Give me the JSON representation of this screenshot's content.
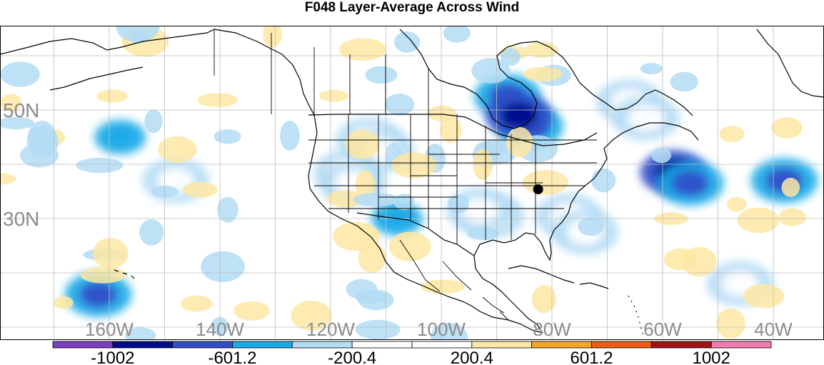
{
  "title": "F048 Layer-Average Across Wind",
  "map": {
    "region": "North America and adjacent Pacific / Atlantic",
    "lat_labels": [
      {
        "text": "50N",
        "lat": 50
      },
      {
        "text": "30N",
        "lat": 30
      }
    ],
    "lon_labels": [
      {
        "text": "160W",
        "lon": -160
      },
      {
        "text": "140W",
        "lon": -140
      },
      {
        "text": "120W",
        "lon": -120
      },
      {
        "text": "100W",
        "lon": -100
      },
      {
        "text": "80W",
        "lon": -80
      },
      {
        "text": "60W",
        "lon": -60
      },
      {
        "text": "40W",
        "lon": -40
      }
    ],
    "markers": [
      {
        "name": "point-marker",
        "lat": 35.4,
        "lon": -82.5
      }
    ],
    "field_blobs": [
      {
        "lon": -113,
        "lat": 44.5,
        "level": 5
      },
      {
        "lon": -111,
        "lat": 42.5,
        "level": 6
      },
      {
        "lon": -117,
        "lat": 38.5,
        "level": 6
      },
      {
        "lon": -116,
        "lat": 36.5,
        "level": 5
      },
      {
        "lon": -91,
        "lat": 30.5,
        "level": 6
      },
      {
        "lon": -93,
        "lat": 31.5,
        "level": 5
      },
      {
        "lon": -66,
        "lat": 51.5,
        "level": 5
      },
      {
        "lon": -63,
        "lat": 48.5,
        "level": 6
      },
      {
        "lon": -77,
        "lat": 30.5,
        "level": 5
      },
      {
        "lon": -74,
        "lat": 27.5,
        "level": 6
      },
      {
        "lon": -148,
        "lat": 37,
        "level": 5
      },
      {
        "lon": -46,
        "lat": 18,
        "level": 6
      },
      {
        "lon": -88,
        "lat": 52.5,
        "level": 2
      },
      {
        "lon": -84,
        "lat": 47,
        "level": 2
      },
      {
        "lon": -86,
        "lat": 49,
        "level": 1
      },
      {
        "lon": -58,
        "lat": 38.5,
        "level": 1
      },
      {
        "lon": -55,
        "lat": 36.5,
        "level": 2
      },
      {
        "lon": -38,
        "lat": 37,
        "level": 2
      },
      {
        "lon": -162,
        "lat": 16,
        "level": 2
      },
      {
        "lon": -158,
        "lat": 45,
        "level": 3
      },
      {
        "lon": -108,
        "lat": 30,
        "level": 3
      }
    ],
    "colors": {
      "land_outline": "#000000",
      "grid": "#bdbdbd",
      "marker": "#000000"
    }
  },
  "colorbar": {
    "colors": [
      "#7b3fbf",
      "#000c8a",
      "#2f4ec8",
      "#1aaae8",
      "#b3dcf5",
      "#ffffff",
      "#ffffff",
      "#fde8a3",
      "#f5a623",
      "#f05a14",
      "#a01412",
      "#f27bb0"
    ],
    "labels": [
      "-1002",
      "-601.2",
      "-200.4",
      "200.4",
      "601.2",
      "1002"
    ]
  }
}
